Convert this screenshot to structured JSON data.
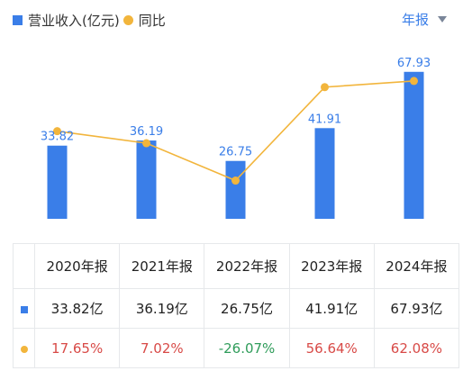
{
  "legend": {
    "revenue": "营业收入(亿元)",
    "yoy": "同比"
  },
  "period_selector": {
    "label": "年报"
  },
  "chart_data": {
    "type": "bar",
    "categories": [
      "2020年报",
      "2021年报",
      "2022年报",
      "2023年报",
      "2024年报"
    ],
    "series": [
      {
        "name": "营业收入(亿元)",
        "type": "bar",
        "values": [
          33.82,
          36.19,
          26.75,
          41.91,
          67.93
        ],
        "color": "#3a7ee8"
      },
      {
        "name": "同比",
        "type": "line",
        "values": [
          17.65,
          7.02,
          -26.07,
          56.64,
          62.08
        ],
        "color": "#f2b53c"
      }
    ],
    "grid": false
  },
  "table": {
    "headers": [
      "2020年报",
      "2021年报",
      "2022年报",
      "2023年报",
      "2024年报"
    ],
    "revenue": [
      "33.82亿",
      "36.19亿",
      "26.75亿",
      "41.91亿",
      "67.93亿"
    ],
    "yoy": [
      "17.65%",
      "7.02%",
      "-26.07%",
      "56.64%",
      "62.08%"
    ]
  },
  "colors": {
    "bar": "#3a7ee8",
    "line": "#f2b53c",
    "positive": "#d84a47",
    "negative": "#2f9c5a"
  }
}
